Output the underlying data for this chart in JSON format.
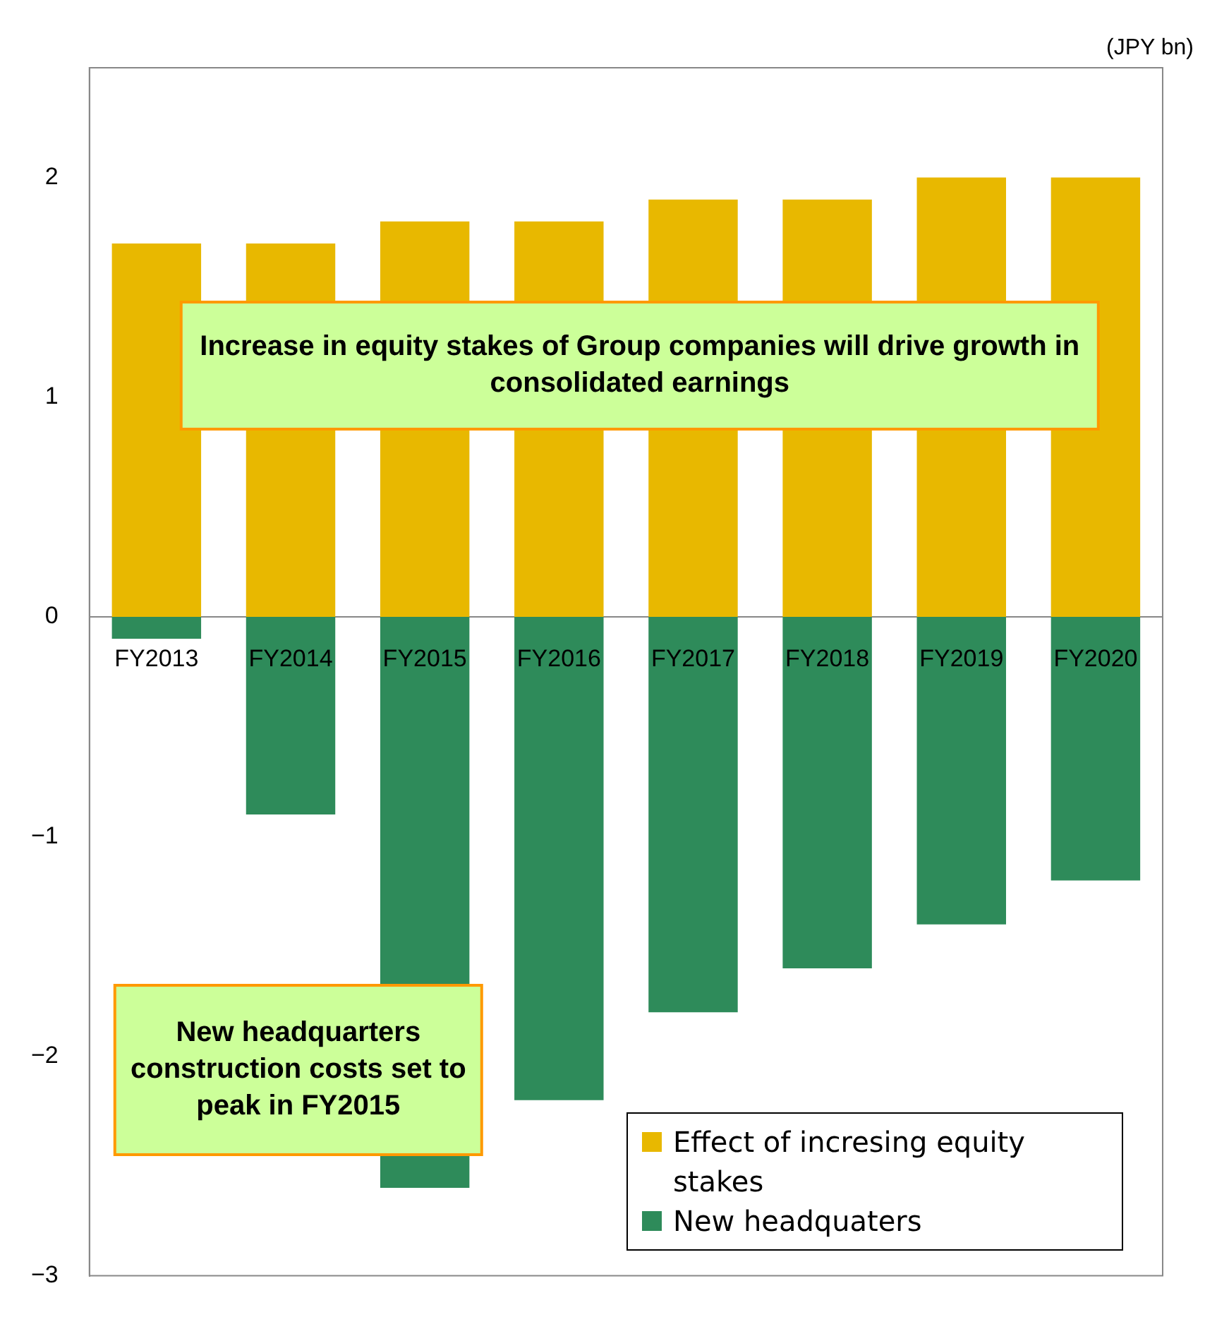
{
  "chart_data": {
    "type": "bar",
    "stacked": true,
    "categories": [
      "FY2013",
      "FY2014",
      "FY2015",
      "FY2016",
      "FY2017",
      "FY2018",
      "FY2019",
      "FY2020"
    ],
    "series": [
      {
        "name": "Effect of incresing equity stakes",
        "color": "#e8b800",
        "values": [
          1.7,
          1.7,
          1.8,
          1.8,
          1.9,
          1.9,
          2.0,
          2.0
        ]
      },
      {
        "name": "New headquaters",
        "color": "#2e8b5a",
        "values": [
          -0.1,
          -0.9,
          -2.6,
          -2.2,
          -1.8,
          -1.6,
          -1.4,
          -1.2
        ]
      }
    ],
    "ylim": [
      -3,
      2.5
    ],
    "yticks": [
      {
        "value": -3,
        "label": "−3"
      },
      {
        "value": -2,
        "label": "−2"
      },
      {
        "value": -1,
        "label": "−1"
      },
      0,
      1,
      2
    ],
    "grid": false,
    "legend": "bottom right",
    "annotations": [
      "(JPY bn)",
      "Increase in equity stakes of Group companies will drive growth in consolidated earnings",
      "New headquarters construction costs set to peak in FY2015"
    ]
  }
}
